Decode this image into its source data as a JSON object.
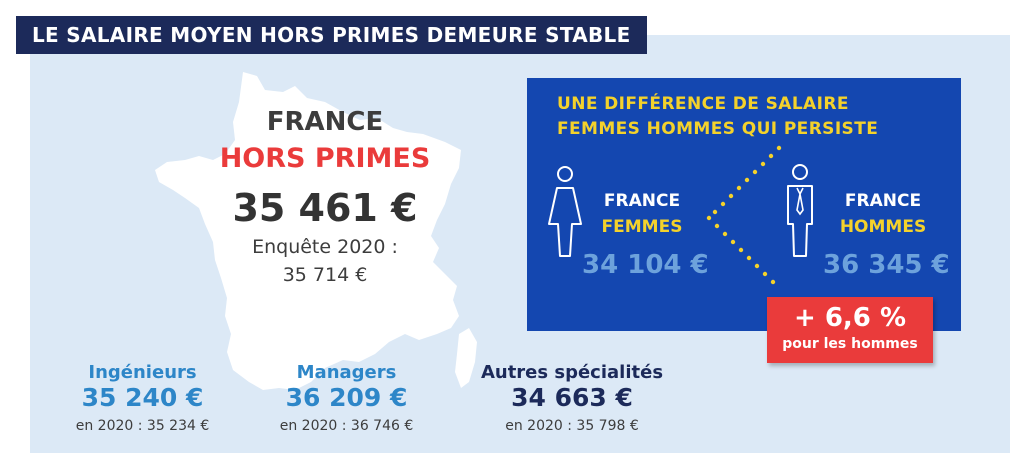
{
  "banner": {
    "title": "LE SALAIRE MOYEN HORS PRIMES DEMEURE STABLE"
  },
  "france": {
    "label": "FRANCE",
    "subtitle": "HORS PRIMES",
    "amount": "35 461 €",
    "previous_line1": "Enquête 2020 :",
    "previous_line2": "35 714 €"
  },
  "gap_box": {
    "title_line1": "UNE DIFFÉRENCE DE SALAIRE",
    "title_line2": "FEMMES HOMMES QUI PERSISTE",
    "women": {
      "label_line1": "FRANCE",
      "label_line2": "FEMMES",
      "amount": "34 104 €"
    },
    "men": {
      "label_line1": "FRANCE",
      "label_line2": "HOMMES",
      "amount": "36 345 €"
    },
    "badge": {
      "value": "+ 6,6 %",
      "caption": "pour les hommes"
    }
  },
  "categories": [
    {
      "name": "Ingénieurs",
      "value": "35 240 €",
      "previous": "en 2020 : 35 234 €"
    },
    {
      "name": "Managers",
      "value": "36 209 €",
      "previous": "en 2020 : 36 746 €"
    },
    {
      "name": "Autres spécialités",
      "value": "34 663 €",
      "previous": "en 2020 : 35 798 €"
    }
  ],
  "colors": {
    "banner_bg": "#1c2a5a",
    "panel_bg": "#dce9f6",
    "box_bg": "#1447b0",
    "accent_red": "#ea3b3b",
    "accent_yellow": "#f4d22b",
    "accent_blue": "#2d86c8"
  },
  "icons": [
    "france-map-icon",
    "woman-icon",
    "man-icon",
    "dotted-chevron-icon"
  ]
}
